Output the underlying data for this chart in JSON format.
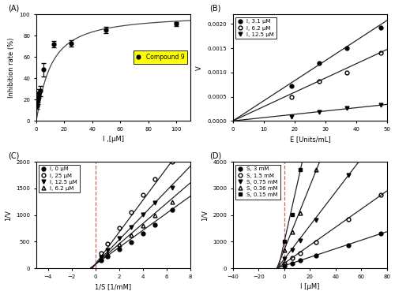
{
  "panel_A": {
    "label": "(A)",
    "xlabel": "I ,[μM]",
    "ylabel": "Inhibition rate (%)",
    "xlim": [
      0,
      110
    ],
    "ylim": [
      0,
      100
    ],
    "xticks": [
      0,
      20,
      40,
      60,
      80,
      100
    ],
    "yticks": [
      0,
      20,
      40,
      60,
      80,
      100
    ],
    "data_x": [
      0.5,
      1.0,
      1.5,
      2.0,
      3.0,
      5.0,
      12.5,
      25.0,
      50.0,
      100.0
    ],
    "data_y": [
      14.0,
      20.0,
      22.0,
      26.0,
      28.0,
      48.0,
      72.0,
      72.5,
      85.0,
      91.0
    ],
    "data_yerr": [
      3.0,
      4.0,
      4.0,
      4.0,
      5.0,
      6.0,
      3.0,
      3.0,
      3.0,
      2.0
    ],
    "ic50": 9.8,
    "hill_n": 1.15,
    "legend_label": "Compound 9",
    "legend_bg": "#ffff00",
    "curve_color": "#444444"
  },
  "panel_B": {
    "label": "(B)",
    "xlabel": "E [Units/mL]",
    "ylabel": "V",
    "xlim": [
      0,
      50
    ],
    "ylim": [
      0,
      0.0022
    ],
    "xticks": [
      0,
      10,
      20,
      30,
      40,
      50
    ],
    "yticks": [
      0.0,
      0.0005,
      0.001,
      0.0015,
      0.002
    ],
    "series": [
      {
        "label": "I, 3.1 μM",
        "marker": "o",
        "fillstyle": "full",
        "E": [
          19.0,
          28.0,
          37.0,
          48.0
        ],
        "V": [
          0.00072,
          0.0012,
          0.0015,
          0.00192
        ],
        "slope": 4.15e-05,
        "intercept": 0.0
      },
      {
        "label": "I, 6.2 μM",
        "marker": "o",
        "fillstyle": "none",
        "E": [
          19.0,
          28.0,
          37.0,
          48.0
        ],
        "V": [
          0.0005,
          0.00082,
          0.001,
          0.0014
        ],
        "slope": 2.95e-05,
        "intercept": 0.0
      },
      {
        "label": "I, 12.5 μM",
        "marker": "v",
        "fillstyle": "full",
        "E": [
          19.0,
          28.0,
          37.0,
          48.0
        ],
        "V": [
          8.5e-05,
          0.00019,
          0.00027,
          0.00033
        ],
        "slope": 6.8e-06,
        "intercept": 0.0
      }
    ]
  },
  "panel_C": {
    "label": "(C)",
    "xlabel": "1/S [1/mM]",
    "ylabel": "1/V",
    "xlim": [
      -5,
      8
    ],
    "ylim": [
      0,
      2000
    ],
    "xticks": [
      -4,
      -2,
      0,
      2,
      4,
      6,
      8
    ],
    "yticks": [
      0,
      500,
      1000,
      1500,
      2000
    ],
    "vline_x": 0.0,
    "vline_color": "#d06060",
    "vline_style": "--",
    "common_intercept_x": -0.5,
    "common_intercept_y": 80,
    "series": [
      {
        "label": "I, 0 μM",
        "marker": "o",
        "fillstyle": "full",
        "x": [
          0.5,
          1.0,
          2.0,
          3.0,
          4.0,
          5.0,
          6.5
        ],
        "y": [
          150,
          230,
          360,
          490,
          650,
          820,
          1100
        ],
        "slope": 160.0,
        "intercept": 75.0
      },
      {
        "label": "I, 25 μM",
        "marker": "o",
        "fillstyle": "none",
        "x": [
          0.5,
          1.0,
          2.0,
          3.0,
          4.0,
          5.0,
          6.5
        ],
        "y": [
          290,
          460,
          760,
          1060,
          1380,
          1680,
          2000
        ],
        "slope": 300.0,
        "intercept": 80.0
      },
      {
        "label": "I, 12.5 μM",
        "marker": "v",
        "fillstyle": "full",
        "x": [
          0.5,
          1.0,
          2.0,
          3.0,
          4.0,
          5.0,
          6.5
        ],
        "y": [
          215,
          340,
          560,
          780,
          1010,
          1240,
          1510
        ],
        "slope": 230.0,
        "intercept": 78.0
      },
      {
        "label": "I, 6.2 μM",
        "marker": "^",
        "fillstyle": "none",
        "x": [
          0.5,
          1.0,
          2.0,
          3.0,
          4.0,
          5.0,
          6.5
        ],
        "y": [
          175,
          270,
          445,
          620,
          800,
          990,
          1250
        ],
        "slope": 191.0,
        "intercept": 77.0
      }
    ]
  },
  "panel_D": {
    "label": "(D)",
    "xlabel": "I [μM]",
    "ylabel": "1/V",
    "xlim": [
      -40,
      80
    ],
    "ylim": [
      0,
      4000
    ],
    "xticks": [
      -40,
      -20,
      0,
      20,
      40,
      60,
      80
    ],
    "yticks": [
      0,
      1000,
      2000,
      3000,
      4000
    ],
    "vline_x": 0.0,
    "vline_color": "#d06060",
    "vline_style": "--",
    "series": [
      {
        "label": "S, 3 mM",
        "marker": "o",
        "fillstyle": "full",
        "x": [
          0,
          6.25,
          12.5,
          25.0,
          50.0,
          75.0
        ],
        "y": [
          100,
          190,
          290,
          490,
          880,
          1300
        ],
        "slope": 16.0,
        "intercept": 100.0
      },
      {
        "label": "S, 1.5 mM",
        "marker": "o",
        "fillstyle": "none",
        "x": [
          0,
          6.25,
          12.5,
          25.0,
          50.0,
          75.0
        ],
        "y": [
          190,
          380,
          570,
          980,
          1850,
          2750
        ],
        "slope": 34.0,
        "intercept": 190.0
      },
      {
        "label": "S, 0.75 mM",
        "marker": "v",
        "fillstyle": "full",
        "x": [
          0,
          6.25,
          12.5,
          25.0,
          50.0
        ],
        "y": [
          350,
          700,
          1050,
          1800,
          3500
        ],
        "slope": 63.0,
        "intercept": 350.0
      },
      {
        "label": "S, 0.36 mM",
        "marker": "^",
        "fillstyle": "none",
        "x": [
          0,
          6.25,
          12.5,
          25.0
        ],
        "y": [
          700,
          1380,
          2080,
          3700
        ],
        "slope": 120.0,
        "intercept": 700.0
      },
      {
        "label": "S, 0.15 mM",
        "marker": "s",
        "fillstyle": "full",
        "x": [
          0,
          6.25,
          12.5
        ],
        "y": [
          1000,
          2020,
          3700
        ],
        "slope": 215.0,
        "intercept": 1000.0
      }
    ]
  },
  "fig_bg": "#ffffff",
  "line_color": "#222222",
  "marker_color": "#222222",
  "markersize": 3.5,
  "linewidth": 0.9
}
